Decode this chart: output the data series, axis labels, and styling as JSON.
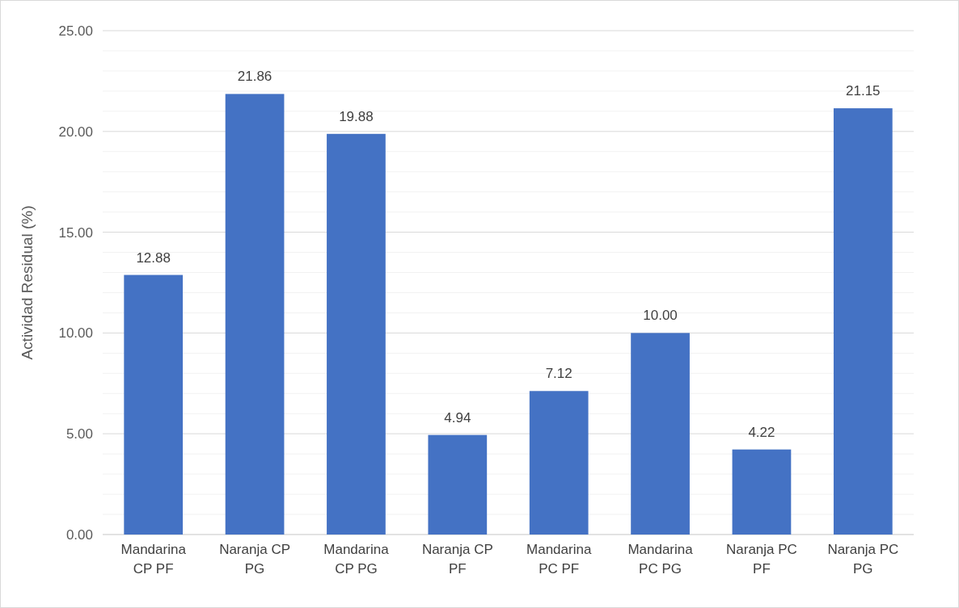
{
  "chart_data": {
    "type": "bar",
    "ylabel": "Actividad Residual (%)",
    "categories": [
      "Mandarina CP PF",
      "Naranja CP PG",
      "Mandarina CP PG",
      "Naranja CP PF",
      "Mandarina PC PF",
      "Mandarina PC PG",
      "Naranja PC PF",
      "Naranja PC PG"
    ],
    "values": [
      12.88,
      21.86,
      19.88,
      4.94,
      7.12,
      10.0,
      4.22,
      21.15
    ],
    "value_labels": [
      "12.88",
      "21.86",
      "19.88",
      "4.94",
      "7.12",
      "10.00",
      "4.22",
      "21.15"
    ],
    "color": "#4472c4",
    "grid": true,
    "ylim": [
      0,
      25
    ],
    "yticks": [
      {
        "value": 0,
        "label": "0.00"
      },
      {
        "value": 1,
        "label": null
      },
      {
        "value": 2,
        "label": null
      },
      {
        "value": 3,
        "label": null
      },
      {
        "value": 4,
        "label": null
      },
      {
        "value": 5,
        "label": "5.00"
      },
      {
        "value": 6,
        "label": null
      },
      {
        "value": 7,
        "label": null
      },
      {
        "value": 8,
        "label": null
      },
      {
        "value": 9,
        "label": null
      },
      {
        "value": 10,
        "label": "10.00"
      },
      {
        "value": 11,
        "label": null
      },
      {
        "value": 12,
        "label": null
      },
      {
        "value": 13,
        "label": null
      },
      {
        "value": 14,
        "label": null
      },
      {
        "value": 15,
        "label": "15.00"
      },
      {
        "value": 16,
        "label": null
      },
      {
        "value": 17,
        "label": null
      },
      {
        "value": 18,
        "label": null
      },
      {
        "value": 19,
        "label": null
      },
      {
        "value": 20,
        "label": "20.00"
      },
      {
        "value": 21,
        "label": null
      },
      {
        "value": 22,
        "label": null
      },
      {
        "value": 23,
        "label": null
      },
      {
        "value": 24,
        "label": null
      },
      {
        "value": 25,
        "label": "25.00"
      }
    ]
  }
}
